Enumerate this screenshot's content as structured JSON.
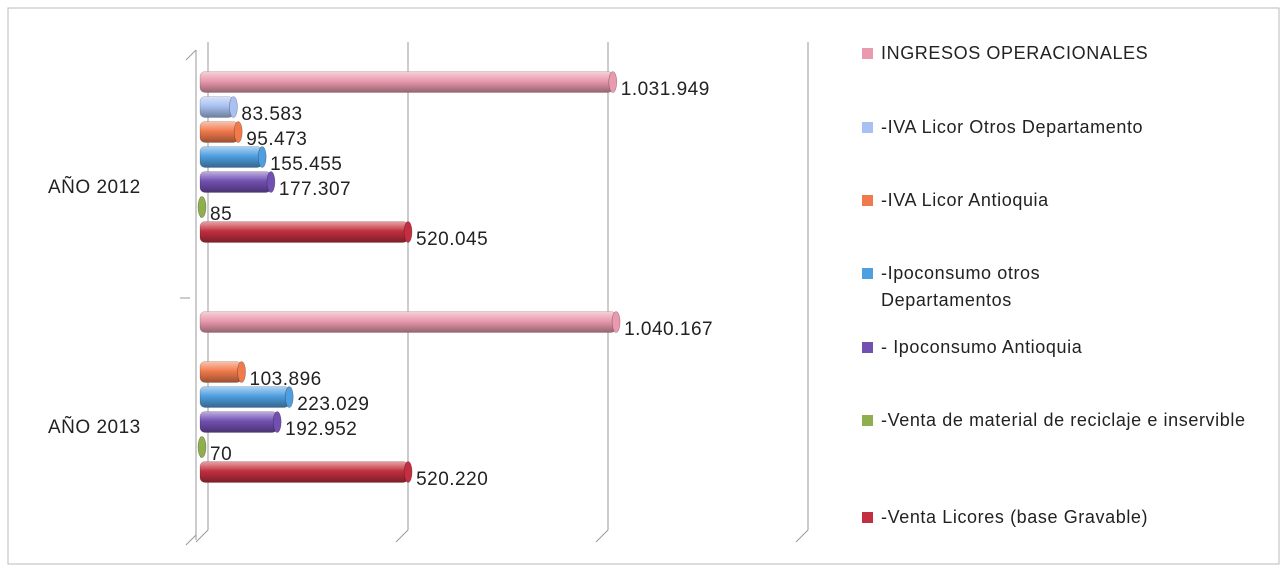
{
  "chart_data": {
    "type": "bar",
    "orientation": "horizontal",
    "categories": [
      "AÑO 2012",
      "AÑO 2013"
    ],
    "series": [
      {
        "name": "INGRESOS OPERACIONALES",
        "color": "#e99aae",
        "values": [
          1031949,
          1040167
        ],
        "value_labels": [
          "1.031.949",
          "1.040.167"
        ]
      },
      {
        "name": "-IVA Licor Otros Departamento",
        "color": "#a9c1f2",
        "values": [
          83583,
          null
        ],
        "value_labels": [
          "83.583",
          null
        ]
      },
      {
        "name": "-IVA Licor Antioquia",
        "color": "#f07a4c",
        "values": [
          95473,
          103896
        ],
        "value_labels": [
          "95.473",
          "103.896"
        ]
      },
      {
        "name": "-Ipoconsumo otros Departamentos",
        "color": "#4f9fe0",
        "values": [
          155455,
          223029
        ],
        "value_labels": [
          "155.455",
          "223.029"
        ]
      },
      {
        "name": "- Ipoconsumo Antioquia",
        "color": "#7250b2",
        "values": [
          177307,
          192952
        ],
        "value_labels": [
          "177.307",
          "192.952"
        ]
      },
      {
        "name": "-Venta de material de reciclaje e inservible",
        "color": "#8fae4e",
        "values": [
          85,
          70
        ],
        "value_labels": [
          "85",
          "70"
        ]
      },
      {
        "name": "-Venta Licores (base Gravable)",
        "color": "#c22f40",
        "values": [
          520045,
          520220
        ],
        "value_labels": [
          "520.045",
          "520.220"
        ]
      }
    ],
    "xlim": [
      0,
      1500000
    ],
    "xticks": [
      0,
      500000,
      1000000,
      1500000
    ],
    "grid": true,
    "legend": "right"
  }
}
